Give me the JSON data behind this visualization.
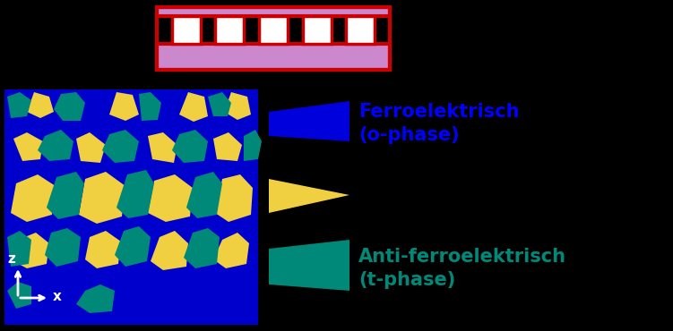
{
  "bg_color": "#000000",
  "fig_width": 7.51,
  "fig_height": 3.7,
  "comb_color": "#cc0000",
  "comb_fill": "#cc88cc",
  "comb_white": "#ffffff",
  "map_color_bg": "#0000cc",
  "map_color_yellow": "#f0d040",
  "map_color_teal": "#008878",
  "fe_label": "Ferroelektrisch\n(o-phase)",
  "fe_color": "#0000ff",
  "para_color": "#f0d040",
  "anti_label": "Anti-ferroelektrisch\n(t-phase)",
  "anti_color": "#008878"
}
